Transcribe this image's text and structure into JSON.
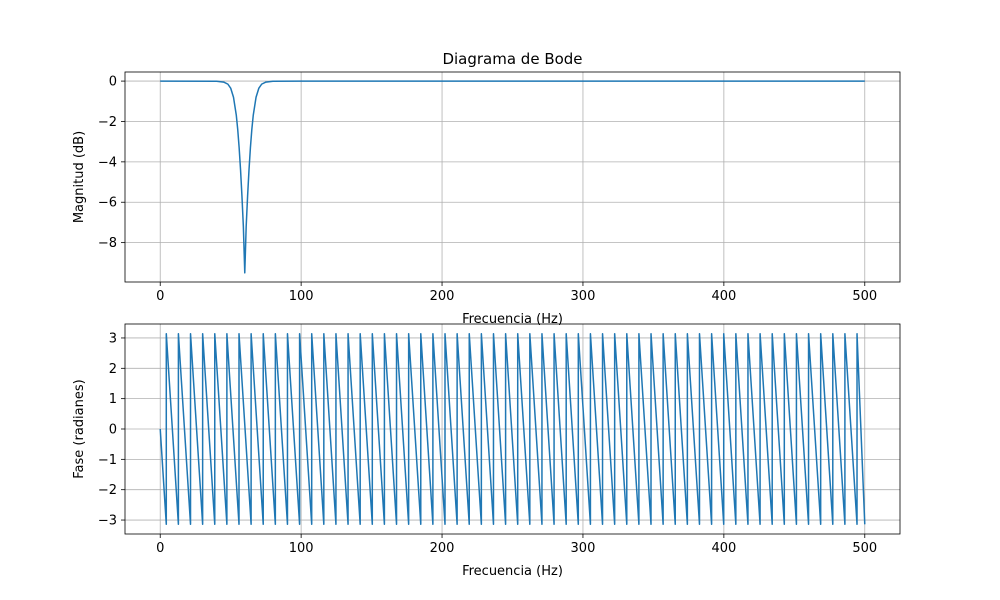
{
  "chart_data": [
    {
      "type": "line",
      "title": "Diagrama de Bode",
      "xlabel": "Frecuencia (Hz)",
      "ylabel": "Magnitud (dB)",
      "xlim": [
        -25,
        525
      ],
      "ylim": [
        -9.95,
        0.45
      ],
      "xticks": [
        0,
        100,
        200,
        300,
        400,
        500
      ],
      "yticks": [
        0,
        -2,
        -4,
        -6,
        -8
      ],
      "grid": true,
      "color": "#1f77b4",
      "series": [
        {
          "x": [
            0,
            40,
            45,
            48,
            50,
            52,
            54,
            55,
            56,
            57,
            58,
            59,
            60,
            61,
            62,
            63,
            64,
            65,
            66,
            68,
            70,
            72,
            75,
            80,
            100,
            200,
            300,
            400,
            500
          ],
          "values": [
            0,
            -0.01,
            -0.05,
            -0.15,
            -0.35,
            -0.8,
            -1.7,
            -2.4,
            -3.3,
            -4.4,
            -5.7,
            -7.2,
            -9.5,
            -7.2,
            -5.7,
            -4.4,
            -3.3,
            -2.4,
            -1.7,
            -0.8,
            -0.35,
            -0.15,
            -0.05,
            -0.01,
            0,
            0,
            0,
            0,
            0
          ]
        }
      ]
    },
    {
      "type": "line",
      "title": "",
      "xlabel": "Frecuencia (Hz)",
      "ylabel": "Fase (radianes)",
      "xlim": [
        -25,
        525
      ],
      "ylim": [
        -3.46,
        3.46
      ],
      "xticks": [
        0,
        100,
        200,
        300,
        400,
        500
      ],
      "yticks": [
        3,
        2,
        1,
        0,
        -1,
        -2,
        -3
      ],
      "grid": true,
      "color": "#1f77b4",
      "series": [
        {
          "x": [
            0,
            4.3,
            4.3,
            12.9,
            12.9,
            21.5,
            21.5,
            30.1,
            30.1,
            38.7,
            38.7,
            47.3,
            47.3,
            55.9,
            55.9,
            64.5,
            64.5,
            73.1,
            73.1,
            81.7,
            81.7,
            90.3,
            90.3,
            98.9,
            98.9,
            107.5,
            107.5,
            116.1,
            116.1,
            124.7,
            124.7,
            133.3,
            133.3,
            141.9,
            141.9,
            150.5,
            150.5,
            159.1,
            159.1,
            167.7,
            167.7,
            176.3,
            176.3,
            184.9,
            184.9,
            193.5,
            193.5,
            202.1,
            202.1,
            210.7,
            210.7,
            219.3,
            219.3,
            227.9,
            227.9,
            236.5,
            236.5,
            245.1,
            245.1,
            253.7,
            253.7,
            262.3,
            262.3,
            270.9,
            270.9,
            279.5,
            279.5,
            288.1,
            288.1,
            296.7,
            296.7,
            305.3,
            305.3,
            313.9,
            313.9,
            322.5,
            322.5,
            331.1,
            331.1,
            339.7,
            339.7,
            348.3,
            348.3,
            356.9,
            356.9,
            365.5,
            365.5,
            374.1,
            374.1,
            382.7,
            382.7,
            391.3,
            391.3,
            399.9,
            399.9,
            408.5,
            408.5,
            417.1,
            417.1,
            425.7,
            425.7,
            434.3,
            434.3,
            442.9,
            442.9,
            451.5,
            451.5,
            460.1,
            460.1,
            468.7,
            468.7,
            477.3,
            477.3,
            485.9,
            485.9,
            494.5,
            494.5,
            500
          ],
          "values": [
            0,
            -3.14,
            3.14,
            -3.14,
            3.14,
            -3.14,
            3.14,
            -3.14,
            3.14,
            -3.14,
            3.14,
            -3.14,
            3.14,
            -3.14,
            3.14,
            -3.14,
            3.14,
            -3.14,
            3.14,
            -3.14,
            3.14,
            -3.14,
            3.14,
            -3.14,
            3.14,
            -3.14,
            3.14,
            -3.14,
            3.14,
            -3.14,
            3.14,
            -3.14,
            3.14,
            -3.14,
            3.14,
            -3.14,
            3.14,
            -3.14,
            3.14,
            -3.14,
            3.14,
            -3.14,
            3.14,
            -3.14,
            3.14,
            -3.14,
            3.14,
            -3.14,
            3.14,
            -3.14,
            3.14,
            -3.14,
            3.14,
            -3.14,
            3.14,
            -3.14,
            3.14,
            -3.14,
            3.14,
            -3.14,
            3.14,
            -3.14,
            3.14,
            -3.14,
            3.14,
            -3.14,
            3.14,
            -3.14,
            3.14,
            -3.14,
            3.14,
            -3.14,
            3.14,
            -3.14,
            3.14,
            -3.14,
            3.14,
            -3.14,
            3.14,
            -3.14,
            3.14,
            -3.14,
            3.14,
            -3.14,
            3.14,
            -3.14,
            3.14,
            -3.14,
            3.14,
            -3.14,
            3.14,
            -3.14,
            3.14,
            -3.14,
            3.14,
            -3.14,
            3.14,
            -3.14,
            3.14,
            -3.14,
            3.14,
            -3.14,
            3.14,
            -3.14,
            3.14,
            -3.14,
            3.14,
            -3.14,
            3.14,
            -3.14,
            3.14,
            -3.14,
            3.14,
            -3.14,
            3.14,
            -3.14,
            3.14,
            -3.14
          ]
        }
      ]
    }
  ]
}
